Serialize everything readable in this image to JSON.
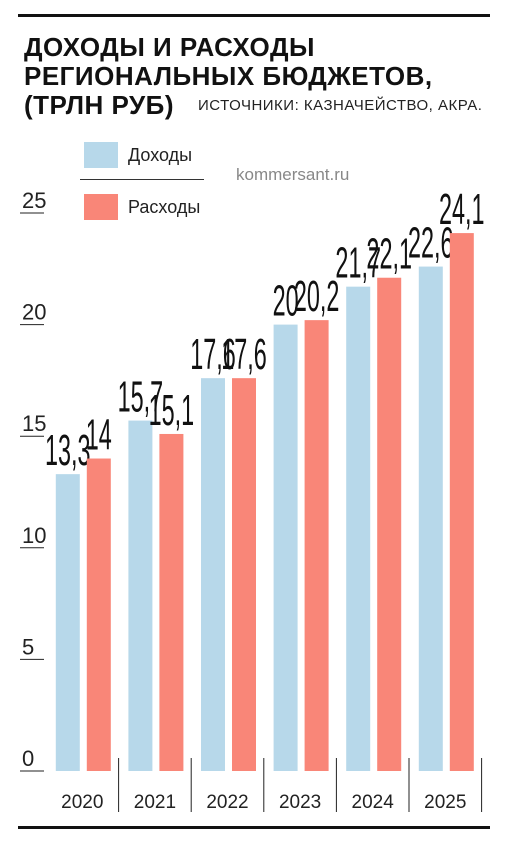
{
  "title_lines": [
    "ДОХОДЫ И РАСХОДЫ",
    "РЕГИОНАЛЬНЫХ БЮДЖЕТОВ,",
    "(ТРЛН РУБ)"
  ],
  "source": "ИСТОЧНИКИ: КАЗНАЧЕЙСТВО, АКРА.",
  "watermark": "kommersant.ru",
  "legend": [
    {
      "label": "Доходы",
      "color": "#b7d8ea"
    },
    {
      "label": "Расходы",
      "color": "#f98678"
    }
  ],
  "chart_data": {
    "type": "bar",
    "title": "ДОХОДЫ И РАСХОДЫ РЕГИОНАЛЬНЫХ БЮДЖЕТОВ, (ТРЛН РУБ)",
    "categories": [
      "2020",
      "2021",
      "2022",
      "2023",
      "2024",
      "2025"
    ],
    "series": [
      {
        "name": "Доходы",
        "color": "#b7d8ea",
        "values": [
          13.3,
          15.7,
          17.6,
          20,
          21.7,
          22.6
        ],
        "labels": [
          "13,3",
          "15,7",
          "17,6",
          "20",
          "21,7",
          "22,6"
        ]
      },
      {
        "name": "Расходы",
        "color": "#f98678",
        "values": [
          14,
          15.1,
          17.6,
          20.2,
          22.1,
          24.1
        ],
        "labels": [
          "14",
          "15,1",
          "17,6",
          "20,2",
          "22,1",
          "24,1"
        ]
      }
    ],
    "yticks": [
      "0",
      "5",
      "10",
      "15",
      "20",
      "25"
    ],
    "ylim": [
      0,
      25
    ],
    "grid": false,
    "legend_position": "top-left"
  }
}
